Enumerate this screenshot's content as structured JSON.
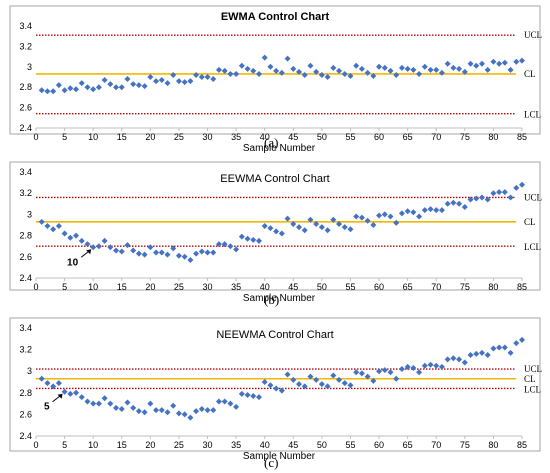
{
  "colors": {
    "points": "#4472C4",
    "limits": "#C00000",
    "center": "#F2B705",
    "frame": "#A6A6A6",
    "text": "#000000"
  },
  "captions": [
    "(a)",
    "(b)",
    "(c)"
  ],
  "chart_data": [
    {
      "type": "scatter",
      "title": "EWMA Control Chart",
      "xlabel": "Sample Number",
      "ylabel": "",
      "xlim": [
        0,
        85
      ],
      "ylim": [
        2.4,
        3.4
      ],
      "xticks": [
        0,
        5,
        10,
        15,
        20,
        25,
        30,
        35,
        40,
        45,
        50,
        55,
        60,
        65,
        70,
        75,
        80,
        85
      ],
      "yticks": [
        2.4,
        2.6,
        2.8,
        3,
        3.2,
        3.4
      ],
      "limits": [
        {
          "label": "UCL",
          "value": 3.31,
          "style": "dotted"
        },
        {
          "label": "CL",
          "value": 2.93,
          "style": "solid"
        },
        {
          "label": "LCL",
          "value": 2.54,
          "style": "dotted"
        }
      ],
      "annotation": null,
      "x": [
        1,
        2,
        3,
        4,
        5,
        6,
        7,
        8,
        9,
        10,
        11,
        12,
        13,
        14,
        15,
        16,
        17,
        18,
        19,
        20,
        21,
        22,
        23,
        24,
        25,
        26,
        27,
        28,
        29,
        30,
        31,
        32,
        33,
        34,
        35,
        36,
        37,
        38,
        39,
        40,
        41,
        42,
        43,
        44,
        45,
        46,
        47,
        48,
        49,
        50,
        51,
        52,
        53,
        54,
        55,
        56,
        57,
        58,
        59,
        60,
        61,
        62,
        63,
        64,
        65,
        66,
        67,
        68,
        69,
        70,
        71,
        72,
        73,
        74,
        75,
        76,
        77,
        78,
        79,
        80,
        81,
        82,
        83,
        84,
        85
      ],
      "y": [
        2.77,
        2.76,
        2.76,
        2.82,
        2.77,
        2.79,
        2.78,
        2.84,
        2.8,
        2.78,
        2.8,
        2.87,
        2.83,
        2.8,
        2.8,
        2.88,
        2.83,
        2.82,
        2.81,
        2.9,
        2.86,
        2.87,
        2.84,
        2.92,
        2.86,
        2.85,
        2.86,
        2.92,
        2.9,
        2.9,
        2.88,
        2.97,
        2.96,
        2.93,
        2.93,
        3.01,
        2.98,
        2.96,
        2.93,
        3.09,
        3.0,
        2.96,
        2.94,
        3.08,
        2.98,
        2.95,
        2.92,
        3.01,
        2.95,
        2.92,
        2.9,
        2.99,
        2.96,
        2.93,
        2.91,
        3.01,
        2.98,
        2.94,
        2.91,
        3.0,
        2.99,
        2.96,
        2.92,
        2.99,
        2.98,
        2.97,
        2.93,
        3.0,
        2.97,
        2.97,
        2.94,
        3.03,
        2.99,
        2.98,
        2.95,
        3.03,
        3.01,
        3.03,
        2.97,
        3.05,
        3.03,
        3.04,
        2.97,
        3.05,
        3.06
      ]
    },
    {
      "type": "scatter",
      "title": "EEWMA Control Chart",
      "xlabel": "Sample Number",
      "ylabel": "",
      "xlim": [
        0,
        85
      ],
      "ylim": [
        2.4,
        3.4
      ],
      "xticks": [
        0,
        5,
        10,
        15,
        20,
        25,
        30,
        35,
        40,
        45,
        50,
        55,
        60,
        65,
        70,
        75,
        80,
        85
      ],
      "yticks": [
        2.4,
        2.6,
        2.8,
        3,
        3.2,
        3.4
      ],
      "limits": [
        {
          "label": "UCL",
          "value": 3.16,
          "style": "dotted"
        },
        {
          "label": "CL",
          "value": 2.93,
          "style": "solid"
        },
        {
          "label": "LCL",
          "value": 2.7,
          "style": "dotted"
        }
      ],
      "annotation": {
        "text": "10",
        "x": 10,
        "y": 2.69
      },
      "x": [
        1,
        2,
        3,
        4,
        5,
        6,
        7,
        8,
        9,
        10,
        11,
        12,
        13,
        14,
        15,
        16,
        17,
        18,
        19,
        20,
        21,
        22,
        23,
        24,
        25,
        26,
        27,
        28,
        29,
        30,
        31,
        32,
        33,
        34,
        35,
        36,
        37,
        38,
        39,
        40,
        41,
        42,
        43,
        44,
        45,
        46,
        47,
        48,
        49,
        50,
        51,
        52,
        53,
        54,
        55,
        56,
        57,
        58,
        59,
        60,
        61,
        62,
        63,
        64,
        65,
        66,
        67,
        68,
        69,
        70,
        71,
        72,
        73,
        74,
        75,
        76,
        77,
        78,
        79,
        80,
        81,
        82,
        83,
        84,
        85
      ],
      "y": [
        2.93,
        2.89,
        2.86,
        2.89,
        2.82,
        2.78,
        2.8,
        2.75,
        2.72,
        2.69,
        2.7,
        2.75,
        2.69,
        2.66,
        2.65,
        2.71,
        2.66,
        2.63,
        2.62,
        2.69,
        2.64,
        2.64,
        2.62,
        2.68,
        2.61,
        2.6,
        2.57,
        2.63,
        2.65,
        2.64,
        2.64,
        2.72,
        2.72,
        2.7,
        2.67,
        2.79,
        2.77,
        2.76,
        2.75,
        2.89,
        2.87,
        2.84,
        2.82,
        2.96,
        2.91,
        2.88,
        2.85,
        2.95,
        2.91,
        2.88,
        2.85,
        2.95,
        2.91,
        2.88,
        2.86,
        2.98,
        2.97,
        2.94,
        2.9,
        2.99,
        3.0,
        2.98,
        2.92,
        3.01,
        3.03,
        3.02,
        2.98,
        3.04,
        3.05,
        3.04,
        3.04,
        3.1,
        3.11,
        3.1,
        3.07,
        3.14,
        3.15,
        3.16,
        3.14,
        3.2,
        3.21,
        3.21,
        3.16,
        3.25,
        3.28
      ]
    },
    {
      "type": "scatter",
      "title": "NEEWMA Control Chart",
      "xlabel": "Sample Number",
      "ylabel": "",
      "xlim": [
        0,
        85
      ],
      "ylim": [
        2.4,
        3.4
      ],
      "xticks": [
        0,
        5,
        10,
        15,
        20,
        25,
        30,
        35,
        40,
        45,
        50,
        55,
        60,
        65,
        70,
        75,
        80,
        85
      ],
      "yticks": [
        2.4,
        2.6,
        2.8,
        3,
        3.2,
        3.4
      ],
      "limits": [
        {
          "label": "UCL",
          "value": 3.02,
          "style": "dotted"
        },
        {
          "label": "CL",
          "value": 2.93,
          "style": "solid"
        },
        {
          "label": "LCL",
          "value": 2.84,
          "style": "dotted"
        }
      ],
      "annotation": {
        "text": "5",
        "x": 5,
        "y": 2.81
      },
      "x": [
        1,
        2,
        3,
        4,
        5,
        6,
        7,
        8,
        9,
        10,
        11,
        12,
        13,
        14,
        15,
        16,
        17,
        18,
        19,
        20,
        21,
        22,
        23,
        24,
        25,
        26,
        27,
        28,
        29,
        30,
        31,
        32,
        33,
        34,
        35,
        36,
        37,
        38,
        39,
        40,
        41,
        42,
        43,
        44,
        45,
        46,
        47,
        48,
        49,
        50,
        51,
        52,
        53,
        54,
        55,
        56,
        57,
        58,
        59,
        60,
        61,
        62,
        63,
        64,
        65,
        66,
        67,
        68,
        69,
        70,
        71,
        72,
        73,
        74,
        75,
        76,
        77,
        78,
        79,
        80,
        81,
        82,
        83,
        84,
        85
      ],
      "y": [
        2.93,
        2.89,
        2.86,
        2.89,
        2.81,
        2.79,
        2.8,
        2.76,
        2.72,
        2.7,
        2.7,
        2.75,
        2.7,
        2.66,
        2.65,
        2.71,
        2.66,
        2.63,
        2.62,
        2.7,
        2.64,
        2.64,
        2.62,
        2.68,
        2.61,
        2.6,
        2.57,
        2.63,
        2.65,
        2.64,
        2.64,
        2.72,
        2.72,
        2.7,
        2.67,
        2.79,
        2.78,
        2.77,
        2.76,
        2.9,
        2.87,
        2.84,
        2.82,
        2.97,
        2.92,
        2.88,
        2.86,
        2.95,
        2.92,
        2.88,
        2.86,
        2.96,
        2.92,
        2.89,
        2.87,
        2.99,
        2.98,
        2.95,
        2.91,
        3.0,
        3.01,
        2.99,
        2.93,
        3.02,
        3.04,
        3.03,
        2.99,
        3.05,
        3.06,
        3.05,
        3.04,
        3.11,
        3.12,
        3.11,
        3.08,
        3.15,
        3.16,
        3.17,
        3.15,
        3.21,
        3.22,
        3.22,
        3.17,
        3.26,
        3.29
      ]
    }
  ]
}
